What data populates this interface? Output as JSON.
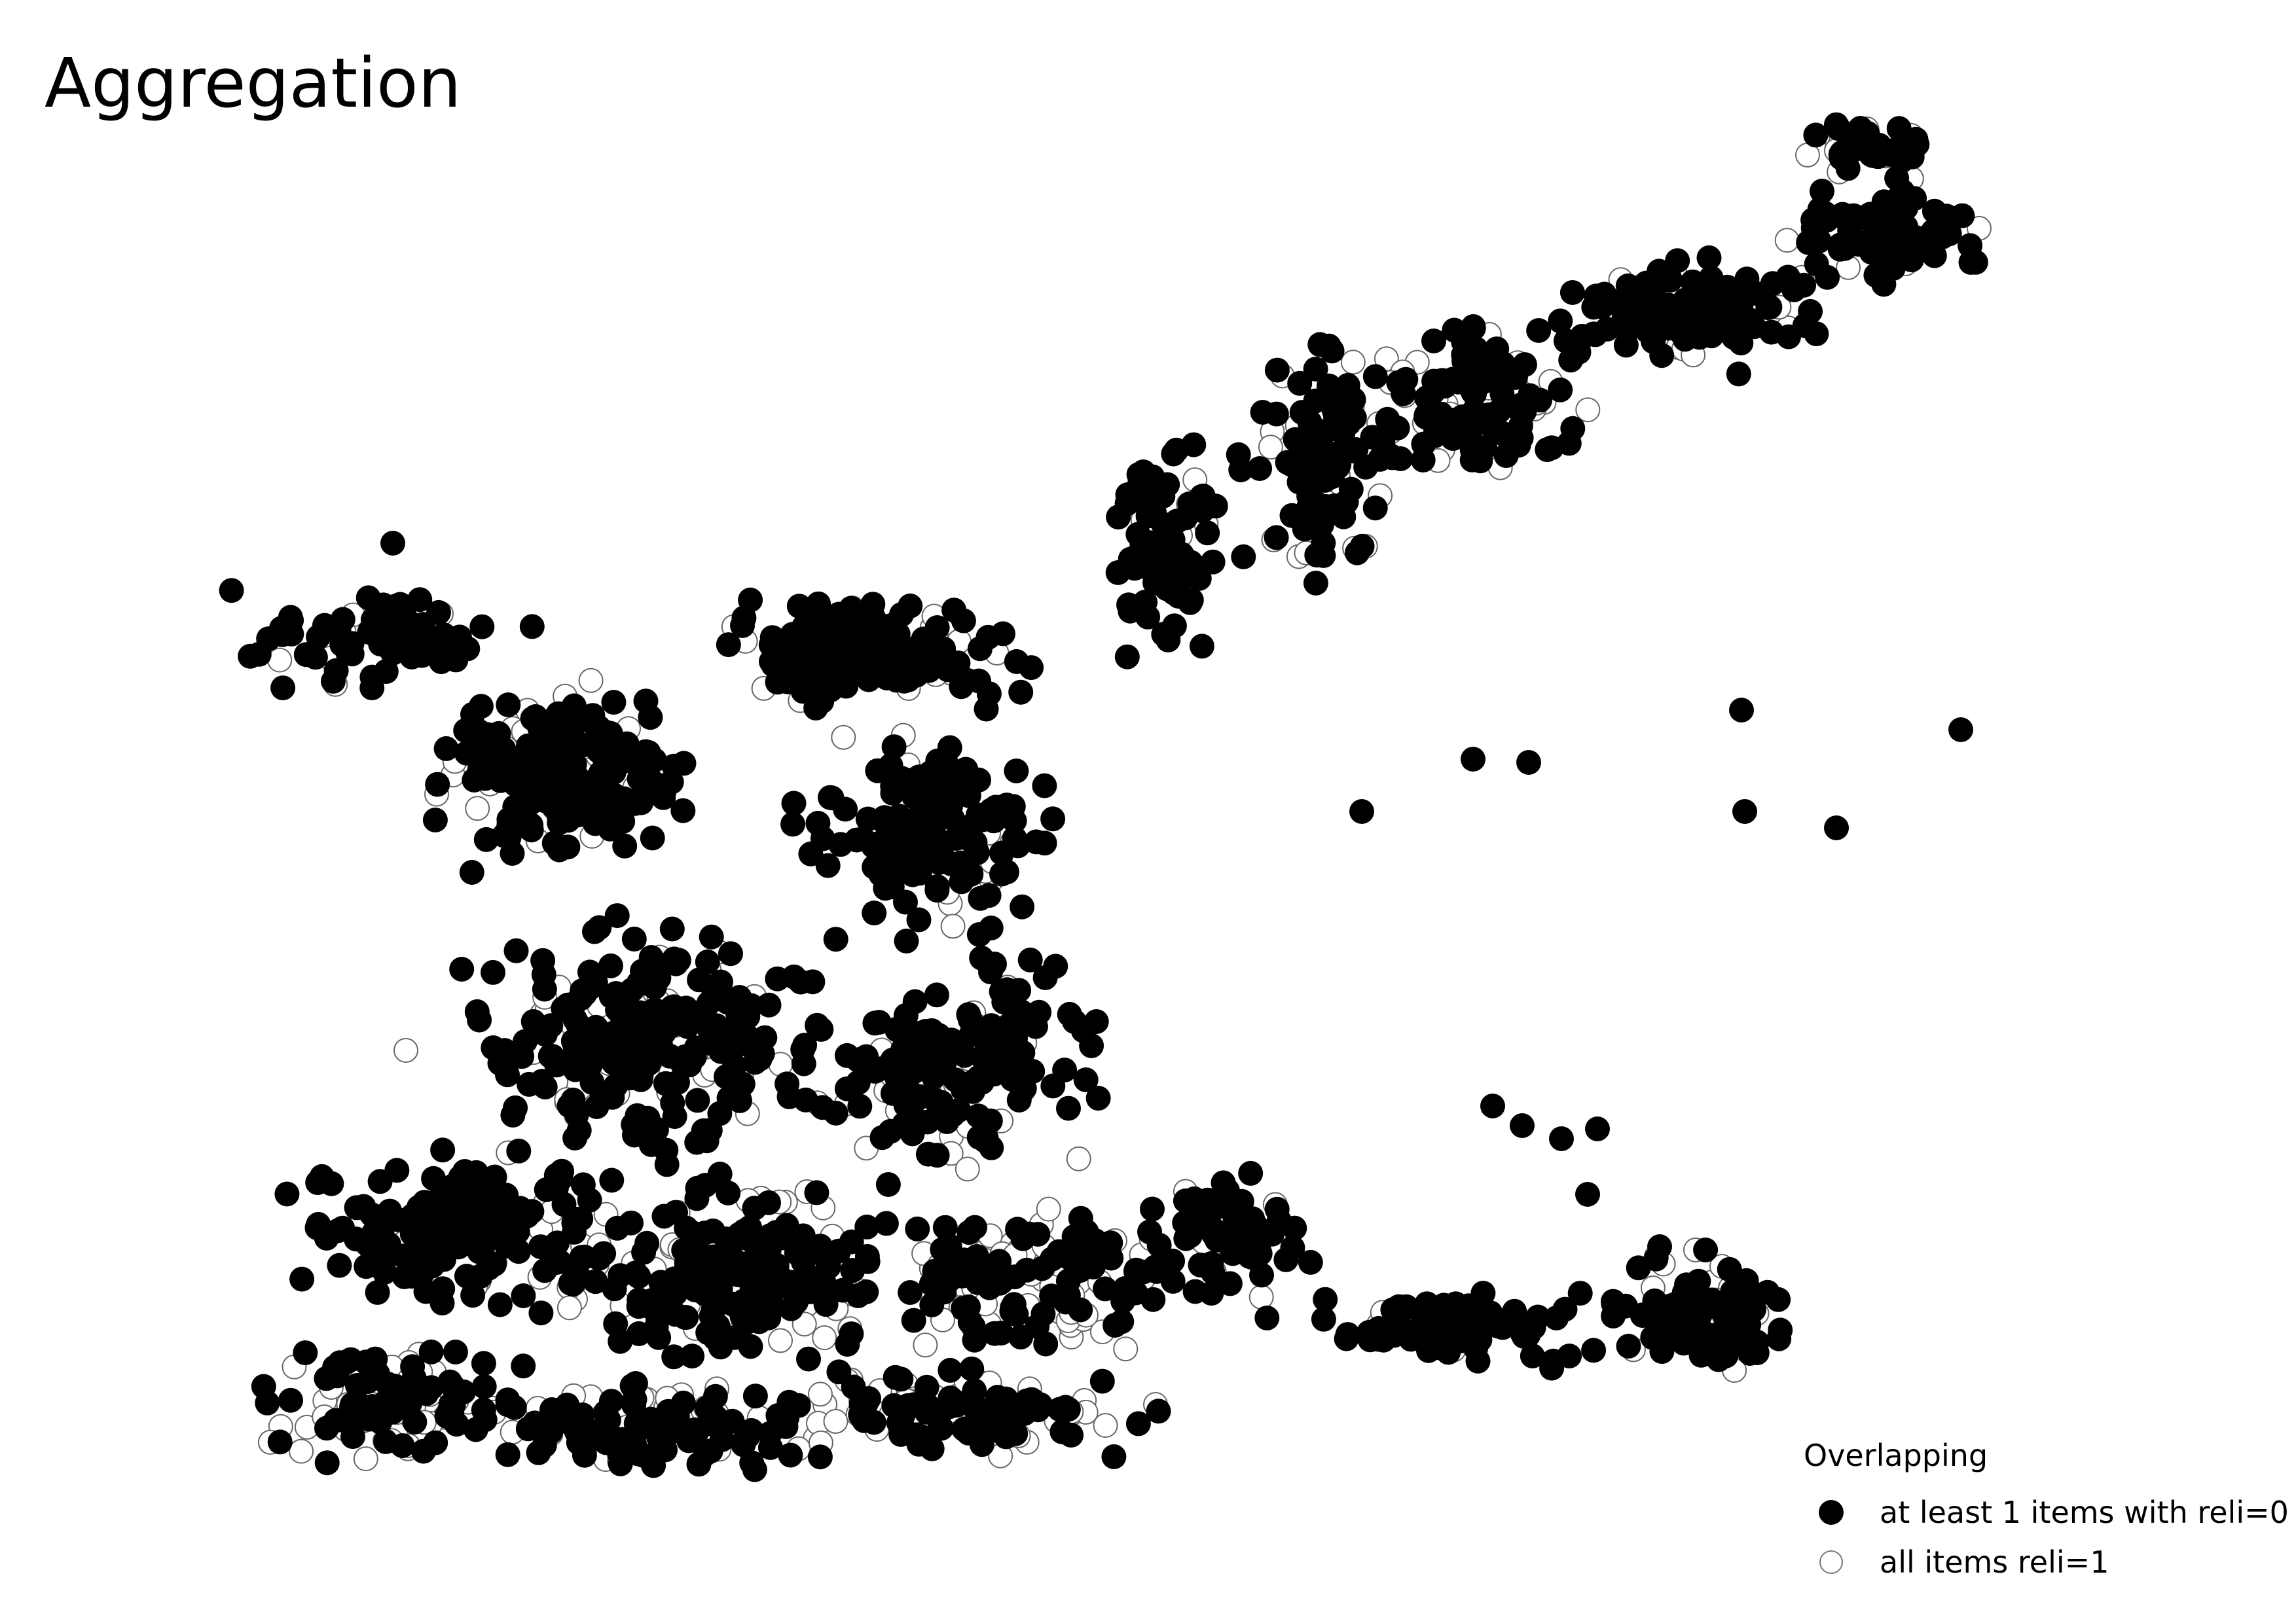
{
  "title": "Aggregation",
  "legend": {
    "title": "Overlapping",
    "items": [
      {
        "label": "at least 1 items with reli=0",
        "symbol": "filled-circle",
        "color": "#000000"
      },
      {
        "label": "all items reli=1",
        "symbol": "open-circle",
        "color": "#808080"
      }
    ]
  },
  "style": {
    "filled_color": "#000000",
    "open_stroke": "#666666",
    "background": "#ffffff"
  }
}
